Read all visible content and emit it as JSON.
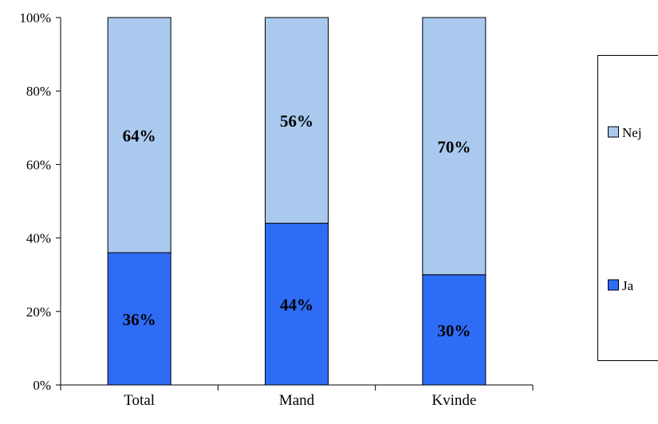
{
  "chart_data": {
    "type": "bar",
    "stacked": true,
    "categories": [
      "Total",
      "Mand",
      "Kvinde"
    ],
    "series": [
      {
        "name": "Ja",
        "values": [
          36,
          44,
          30
        ],
        "labels": [
          "36%",
          "44%",
          "30%"
        ],
        "color": "#2e6cf6"
      },
      {
        "name": "Nej",
        "values": [
          64,
          56,
          70
        ],
        "labels": [
          "64%",
          "56%",
          "70%"
        ],
        "color": "#a9c9ef"
      }
    ],
    "ylim": [
      0,
      100
    ],
    "yticks": [
      0,
      20,
      40,
      60,
      80,
      100
    ],
    "ytick_labels": [
      "0%",
      "20%",
      "40%",
      "60%",
      "80%",
      "100%"
    ],
    "legend": {
      "position": "right",
      "entries": [
        {
          "label": "Nej",
          "series": "Nej"
        },
        {
          "label": "Ja",
          "series": "Ja"
        }
      ]
    },
    "grid": false
  }
}
